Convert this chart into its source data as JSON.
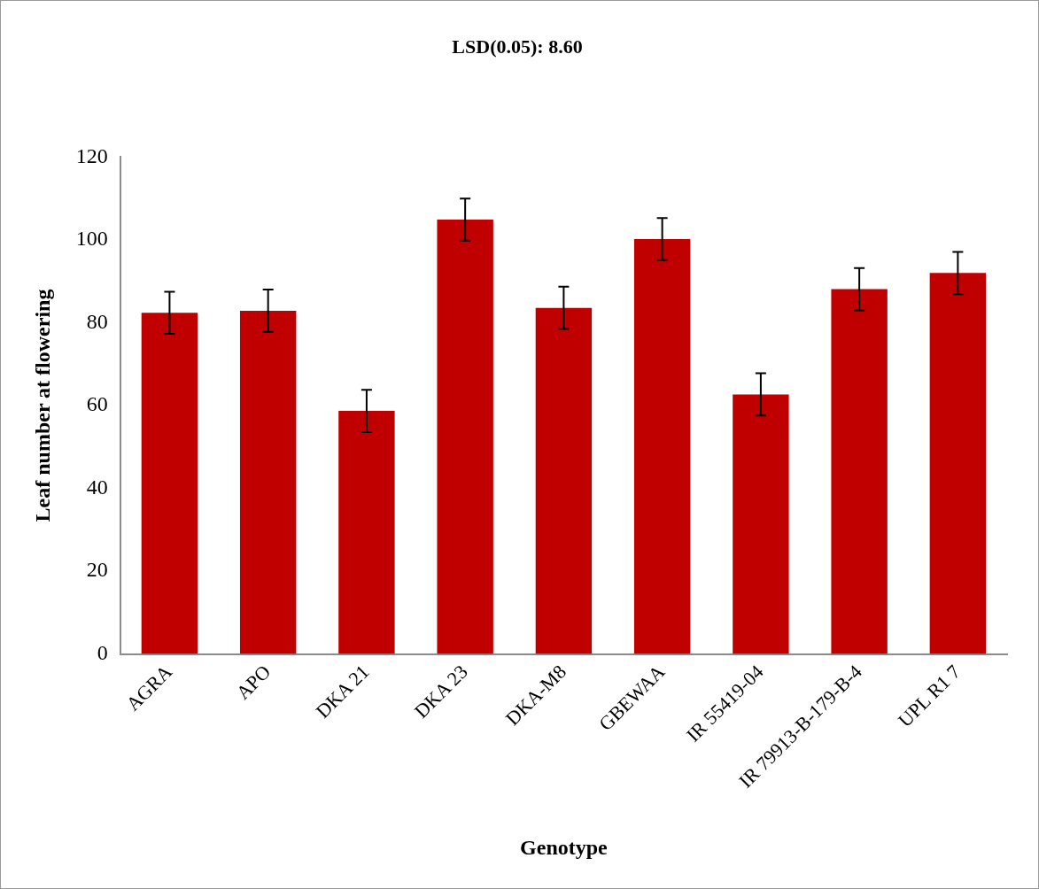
{
  "chart_data": {
    "type": "bar",
    "title": "LSD(0.05): 8.60",
    "xlabel": "Genotype",
    "ylabel": "Leaf number at flowering",
    "categories": [
      "AGRA",
      "APO",
      "DKA 21",
      "DKA 23",
      "DKA-M8",
      "GBEWAA",
      "IR 55419-04",
      "IR 79913-B-179-B-4",
      "UPL R1 7"
    ],
    "values": [
      82.4,
      82.9,
      58.7,
      104.9,
      83.6,
      100.2,
      62.7,
      88.1,
      92.0
    ],
    "errors": [
      5.1,
      5.1,
      5.1,
      5.1,
      5.1,
      5.1,
      5.1,
      5.1,
      5.1
    ],
    "color": "#c00000",
    "ylim": [
      0,
      120
    ],
    "yticks": [
      0,
      20,
      40,
      60,
      80,
      100,
      120
    ],
    "grid": false,
    "legend": false
  }
}
